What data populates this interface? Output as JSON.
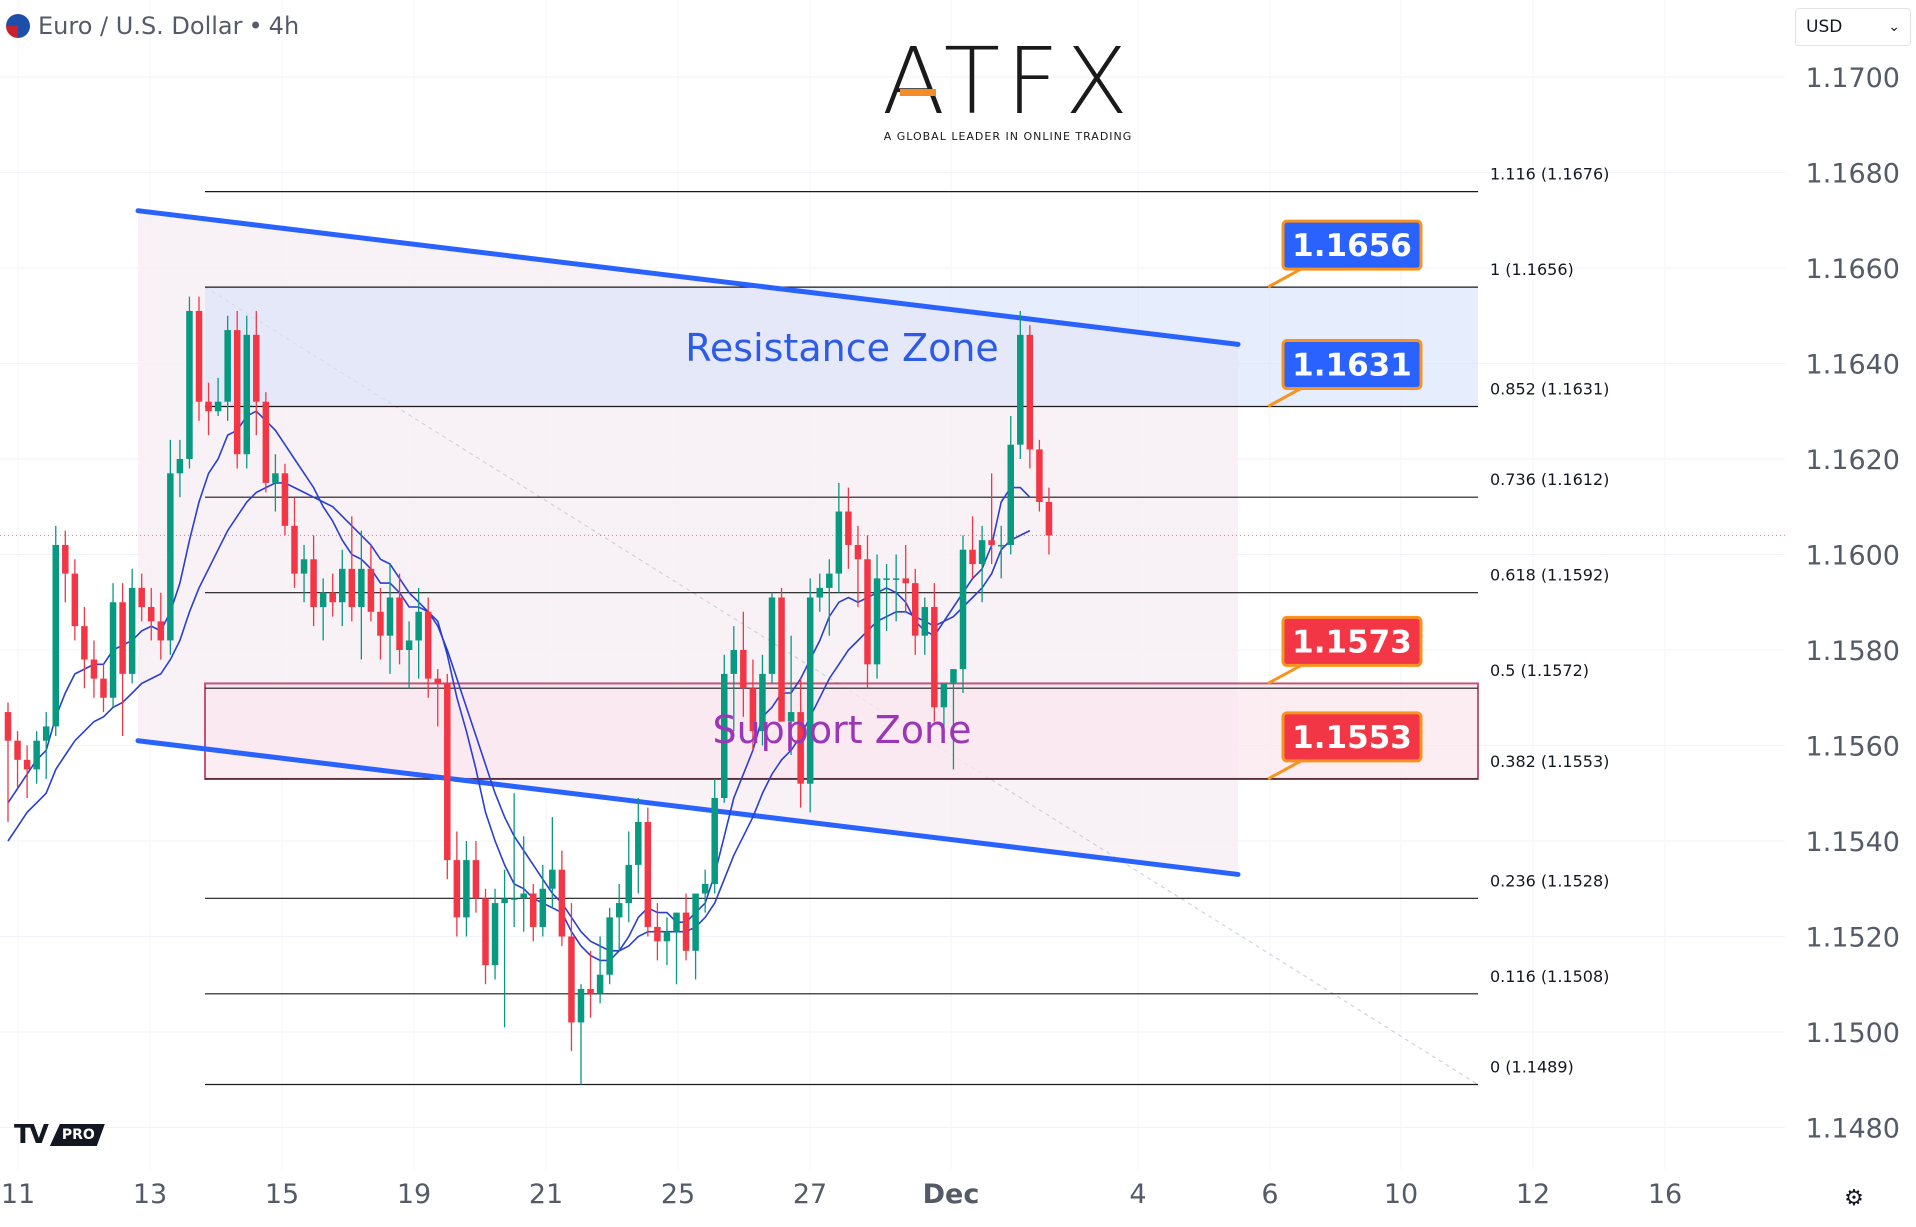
{
  "header": {
    "symbol": "Euro / U.S. Dollar",
    "separator": "•",
    "interval": "4h"
  },
  "currency_select": {
    "value": "USD"
  },
  "logo": {
    "word": "ATFX",
    "tagline": "A GLOBAL LEADER IN ONLINE TRADING"
  },
  "branding": {
    "tv_mark": "TV",
    "tv_tier": "PRO"
  },
  "icons": {
    "settings": "gear-icon",
    "flag": "eu-us-flag-icon"
  },
  "colors": {
    "up": "#089981",
    "down": "#f23645",
    "trendline": "#2962ff",
    "resistance_fill": "#d8e4fb",
    "support_border": "#b0224a",
    "ma": "#2a3fd0",
    "label_blue": "#2962ff",
    "label_red": "#f23645",
    "label_border": "#f7931e"
  },
  "chart_data": {
    "type": "candlestick",
    "title": "Euro / U.S. Dollar • 4h",
    "y_axis": {
      "ticks": [
        1.148,
        1.15,
        1.152,
        1.154,
        1.156,
        1.158,
        1.16,
        1.162,
        1.164,
        1.166,
        1.168,
        1.17
      ],
      "range": [
        1.1469,
        1.1715
      ],
      "side": "right"
    },
    "x_axis": {
      "ticks": [
        "11",
        "13",
        "15",
        "19",
        "21",
        "25",
        "27",
        "Dec",
        "4",
        "6",
        "10",
        "12",
        "16"
      ]
    },
    "current_price": 1.1604,
    "candles": [
      [
        1.1567,
        1.1569,
        1.1544,
        1.1561
      ],
      [
        1.1561,
        1.1563,
        1.1551,
        1.1557
      ],
      [
        1.1557,
        1.156,
        1.1549,
        1.1555
      ],
      [
        1.1555,
        1.1563,
        1.1552,
        1.1561
      ],
      [
        1.1561,
        1.1567,
        1.1553,
        1.1564
      ],
      [
        1.1564,
        1.1606,
        1.1562,
        1.1602
      ],
      [
        1.1602,
        1.1605,
        1.159,
        1.1596
      ],
      [
        1.1596,
        1.1599,
        1.1582,
        1.1585
      ],
      [
        1.1585,
        1.1589,
        1.1572,
        1.1578
      ],
      [
        1.1578,
        1.1582,
        1.157,
        1.1574
      ],
      [
        1.1574,
        1.1577,
        1.1567,
        1.157
      ],
      [
        1.157,
        1.1594,
        1.1568,
        1.159
      ],
      [
        1.159,
        1.1594,
        1.1562,
        1.1575
      ],
      [
        1.1575,
        1.1597,
        1.1573,
        1.1593
      ],
      [
        1.1593,
        1.1596,
        1.1586,
        1.1589
      ],
      [
        1.1589,
        1.1593,
        1.1582,
        1.1586
      ],
      [
        1.1586,
        1.1592,
        1.1578,
        1.1582
      ],
      [
        1.1582,
        1.1624,
        1.1579,
        1.1617
      ],
      [
        1.1617,
        1.1624,
        1.1612,
        1.162
      ],
      [
        1.162,
        1.1654,
        1.1618,
        1.1651
      ],
      [
        1.1651,
        1.1654,
        1.1628,
        1.1632
      ],
      [
        1.1632,
        1.1636,
        1.1625,
        1.163
      ],
      [
        1.163,
        1.1637,
        1.1629,
        1.1632
      ],
      [
        1.1632,
        1.165,
        1.1628,
        1.1647
      ],
      [
        1.1647,
        1.1651,
        1.1618,
        1.1621
      ],
      [
        1.1621,
        1.165,
        1.1618,
        1.1646
      ],
      [
        1.1646,
        1.1651,
        1.1625,
        1.1632
      ],
      [
        1.1632,
        1.1634,
        1.1613,
        1.1615
      ],
      [
        1.1615,
        1.1621,
        1.1609,
        1.1617
      ],
      [
        1.1617,
        1.1619,
        1.1604,
        1.1606
      ],
      [
        1.1606,
        1.1612,
        1.1593,
        1.1596
      ],
      [
        1.1596,
        1.1602,
        1.159,
        1.1599
      ],
      [
        1.1599,
        1.1604,
        1.1585,
        1.1589
      ],
      [
        1.1589,
        1.1595,
        1.1582,
        1.1592
      ],
      [
        1.1592,
        1.1596,
        1.1587,
        1.159
      ],
      [
        1.159,
        1.1601,
        1.1585,
        1.1597
      ],
      [
        1.1597,
        1.1608,
        1.1586,
        1.1589
      ],
      [
        1.1589,
        1.1605,
        1.1578,
        1.1597
      ],
      [
        1.1597,
        1.1602,
        1.1586,
        1.1588
      ],
      [
        1.1588,
        1.1593,
        1.1578,
        1.1583
      ],
      [
        1.1583,
        1.1598,
        1.1575,
        1.1591
      ],
      [
        1.1591,
        1.1596,
        1.1577,
        1.158
      ],
      [
        1.158,
        1.1586,
        1.1572,
        1.1582
      ],
      [
        1.1582,
        1.1593,
        1.1574,
        1.1588
      ],
      [
        1.1588,
        1.1591,
        1.157,
        1.1574
      ],
      [
        1.1574,
        1.1576,
        1.1564,
        1.1573
      ],
      [
        1.1573,
        1.1575,
        1.1532,
        1.1536
      ],
      [
        1.1536,
        1.1542,
        1.152,
        1.1524
      ],
      [
        1.1524,
        1.154,
        1.152,
        1.1536
      ],
      [
        1.1536,
        1.154,
        1.1525,
        1.1528
      ],
      [
        1.1528,
        1.153,
        1.151,
        1.1514
      ],
      [
        1.1514,
        1.153,
        1.1511,
        1.1527
      ],
      [
        1.1527,
        1.1534,
        1.1501,
        1.1528
      ],
      [
        1.1528,
        1.155,
        1.1522,
        1.1528
      ],
      [
        1.1528,
        1.1541,
        1.1521,
        1.1529
      ],
      [
        1.1529,
        1.1531,
        1.1519,
        1.1522
      ],
      [
        1.1522,
        1.1535,
        1.152,
        1.153
      ],
      [
        1.153,
        1.1545,
        1.1526,
        1.1534
      ],
      [
        1.1534,
        1.1538,
        1.1518,
        1.152
      ],
      [
        1.152,
        1.1527,
        1.1496,
        1.1502
      ],
      [
        1.1502,
        1.151,
        1.1489,
        1.1509
      ],
      [
        1.1509,
        1.1517,
        1.1503,
        1.1508
      ],
      [
        1.1508,
        1.152,
        1.1506,
        1.1512
      ],
      [
        1.1512,
        1.1526,
        1.151,
        1.1524
      ],
      [
        1.1524,
        1.1531,
        1.1517,
        1.1527
      ],
      [
        1.1527,
        1.1542,
        1.1523,
        1.1535
      ],
      [
        1.1535,
        1.1549,
        1.1529,
        1.1544
      ],
      [
        1.1544,
        1.1547,
        1.152,
        1.1522
      ],
      [
        1.1522,
        1.1527,
        1.1515,
        1.1519
      ],
      [
        1.1519,
        1.1524,
        1.1514,
        1.1521
      ],
      [
        1.1521,
        1.1525,
        1.151,
        1.1525
      ],
      [
        1.1525,
        1.1529,
        1.1515,
        1.1517
      ],
      [
        1.1517,
        1.1528,
        1.1511,
        1.1529
      ],
      [
        1.1529,
        1.1534,
        1.1525,
        1.1531
      ],
      [
        1.1531,
        1.1553,
        1.1529,
        1.1549
      ],
      [
        1.1549,
        1.1579,
        1.1548,
        1.1575
      ],
      [
        1.1575,
        1.1585,
        1.1563,
        1.158
      ],
      [
        1.158,
        1.1588,
        1.1566,
        1.1572
      ],
      [
        1.1572,
        1.1578,
        1.1559,
        1.1563
      ],
      [
        1.1563,
        1.1579,
        1.156,
        1.1575
      ],
      [
        1.1575,
        1.1592,
        1.1573,
        1.1591
      ],
      [
        1.1591,
        1.1593,
        1.1567,
        1.1565
      ],
      [
        1.1565,
        1.1583,
        1.1558,
        1.1567
      ],
      [
        1.1567,
        1.1574,
        1.1547,
        1.1552
      ],
      [
        1.1552,
        1.1595,
        1.1546,
        1.1591
      ],
      [
        1.1591,
        1.1596,
        1.1588,
        1.1593
      ],
      [
        1.1593,
        1.1599,
        1.1583,
        1.1596
      ],
      [
        1.1596,
        1.1615,
        1.1592,
        1.1609
      ],
      [
        1.1609,
        1.1614,
        1.1597,
        1.1602
      ],
      [
        1.1602,
        1.1606,
        1.1589,
        1.1599
      ],
      [
        1.1599,
        1.1604,
        1.1572,
        1.1577
      ],
      [
        1.1577,
        1.16,
        1.1574,
        1.1595
      ],
      [
        1.1595,
        1.1598,
        1.1584,
        1.1595
      ],
      [
        1.1595,
        1.16,
        1.1586,
        1.1595
      ],
      [
        1.1595,
        1.1602,
        1.1588,
        1.1594
      ],
      [
        1.1594,
        1.1597,
        1.1579,
        1.1583
      ],
      [
        1.1583,
        1.1591,
        1.1579,
        1.1589
      ],
      [
        1.1589,
        1.1594,
        1.1565,
        1.1568
      ],
      [
        1.1568,
        1.1572,
        1.1563,
        1.1573
      ],
      [
        1.1573,
        1.1576,
        1.1555,
        1.1576
      ],
      [
        1.1576,
        1.1604,
        1.1571,
        1.1601
      ],
      [
        1.1601,
        1.1608,
        1.1595,
        1.1598
      ],
      [
        1.1598,
        1.1606,
        1.159,
        1.1603
      ],
      [
        1.1603,
        1.1617,
        1.1598,
        1.1602
      ],
      [
        1.1602,
        1.1606,
        1.1595,
        1.1602
      ],
      [
        1.1602,
        1.1629,
        1.16,
        1.1623
      ],
      [
        1.1623,
        1.1651,
        1.162,
        1.1646
      ],
      [
        1.1646,
        1.1648,
        1.1618,
        1.1622
      ],
      [
        1.1622,
        1.1624,
        1.1609,
        1.1611
      ],
      [
        1.1611,
        1.1614,
        1.16,
        1.1604
      ]
    ],
    "moving_averages": [
      {
        "name": "",
        "values": [
          1.1548,
          1.1551,
          1.1554,
          1.1557,
          1.1559,
          1.1566,
          1.1571,
          1.1575,
          1.1576,
          1.1577,
          1.1577,
          1.158,
          1.1581,
          1.1582,
          1.1584,
          1.1585,
          1.1584,
          1.1588,
          1.1594,
          1.1603,
          1.1611,
          1.1617,
          1.162,
          1.1625,
          1.1626,
          1.1629,
          1.163,
          1.1628,
          1.1626,
          1.1623,
          1.162,
          1.1617,
          1.1614,
          1.161,
          1.1607,
          1.1603,
          1.16,
          1.1599,
          1.1597,
          1.1594,
          1.1594,
          1.1592,
          1.1589,
          1.1589,
          1.1588,
          1.1586,
          1.1579,
          1.157,
          1.1563,
          1.1555,
          1.1546,
          1.154,
          1.1535,
          1.1531,
          1.153,
          1.1528,
          1.1527,
          1.1526,
          1.1525,
          1.1521,
          1.1518,
          1.1516,
          1.1515,
          1.1515,
          1.1517,
          1.152,
          1.1524,
          1.1526,
          1.1525,
          1.1525,
          1.1523,
          1.1523,
          1.1525,
          1.1527,
          1.1533,
          1.1541,
          1.1549,
          1.1554,
          1.1559,
          1.1566,
          1.1568,
          1.1571,
          1.1571,
          1.1574,
          1.1578,
          1.1582,
          1.1587,
          1.159,
          1.1591,
          1.159,
          1.1591,
          1.1592,
          1.1593,
          1.1592,
          1.159,
          1.1586,
          1.1584,
          1.1583,
          1.1586,
          1.1589,
          1.1592,
          1.1595,
          1.1597,
          1.1602,
          1.1611,
          1.1614,
          1.1614,
          1.1612
        ]
      },
      {
        "name": "",
        "values": [
          1.154,
          1.1543,
          1.1546,
          1.1548,
          1.155,
          1.1555,
          1.1558,
          1.1561,
          1.1563,
          1.1565,
          1.1566,
          1.1568,
          1.1569,
          1.1571,
          1.1573,
          1.1574,
          1.1575,
          1.1578,
          1.1582,
          1.1588,
          1.1593,
          1.1597,
          1.1601,
          1.1605,
          1.1608,
          1.1611,
          1.1613,
          1.1614,
          1.1615,
          1.1615,
          1.1614,
          1.1613,
          1.1612,
          1.1611,
          1.161,
          1.1608,
          1.1606,
          1.1604,
          1.1602,
          1.1599,
          1.1598,
          1.1595,
          1.1592,
          1.159,
          1.1588,
          1.1585,
          1.158,
          1.1574,
          1.1568,
          1.1562,
          1.1556,
          1.155,
          1.1545,
          1.1541,
          1.1538,
          1.1535,
          1.1532,
          1.1529,
          1.1527,
          1.1524,
          1.1521,
          1.1519,
          1.1518,
          1.1517,
          1.1517,
          1.1518,
          1.152,
          1.1521,
          1.1521,
          1.1521,
          1.1521,
          1.1521,
          1.1522,
          1.1524,
          1.1527,
          1.1532,
          1.1537,
          1.1541,
          1.1545,
          1.155,
          1.1554,
          1.1557,
          1.1559,
          1.1562,
          1.1566,
          1.157,
          1.1574,
          1.1577,
          1.158,
          1.1582,
          1.1584,
          1.1586,
          1.1587,
          1.1588,
          1.1588,
          1.1587,
          1.1586,
          1.1585,
          1.1586,
          1.1587,
          1.1589,
          1.1591,
          1.1593,
          1.1596,
          1.1601,
          1.1603,
          1.1604,
          1.1605
        ]
      }
    ],
    "fibonacci": {
      "levels": [
        {
          "ratio": "1.116",
          "price": 1.1676,
          "label": "1.116 (1.1676)"
        },
        {
          "ratio": "1",
          "price": 1.1656,
          "label": "1 (1.1656)"
        },
        {
          "ratio": "0.852",
          "price": 1.1631,
          "label": "0.852 (1.1631)"
        },
        {
          "ratio": "0.736",
          "price": 1.1612,
          "label": "0.736 (1.1612)"
        },
        {
          "ratio": "0.618",
          "price": 1.1592,
          "label": "0.618 (1.1592)"
        },
        {
          "ratio": "0.5",
          "price": 1.1572,
          "label": "0.5 (1.1572)"
        },
        {
          "ratio": "0.382",
          "price": 1.1553,
          "label": "0.382 (1.1553)"
        },
        {
          "ratio": "0.236",
          "price": 1.1528,
          "label": "0.236 (1.1528)"
        },
        {
          "ratio": "0.116",
          "price": 1.1508,
          "label": "0.116 (1.1508)"
        },
        {
          "ratio": "0",
          "price": 1.1489,
          "label": "0 (1.1489)"
        }
      ]
    },
    "zones": [
      {
        "label": "Resistance Zone",
        "from": 1.1631,
        "to": 1.1656
      },
      {
        "label": "Support Zone",
        "from": 1.1553,
        "to": 1.1573
      }
    ],
    "trendlines": [
      {
        "points": [
          [
            1.1672,
            "start"
          ],
          [
            1.1644,
            "end"
          ]
        ]
      },
      {
        "points": [
          [
            1.1561,
            "start"
          ],
          [
            1.1533,
            "end"
          ]
        ]
      }
    ],
    "price_labels": [
      {
        "text": "1.1656",
        "value": 1.1656,
        "style": "blue"
      },
      {
        "text": "1.1631",
        "value": 1.1631,
        "style": "blue"
      },
      {
        "text": "1.1573",
        "value": 1.1573,
        "style": "red"
      },
      {
        "text": "1.1553",
        "value": 1.1553,
        "style": "red"
      }
    ],
    "grid": true,
    "legend": "none"
  }
}
